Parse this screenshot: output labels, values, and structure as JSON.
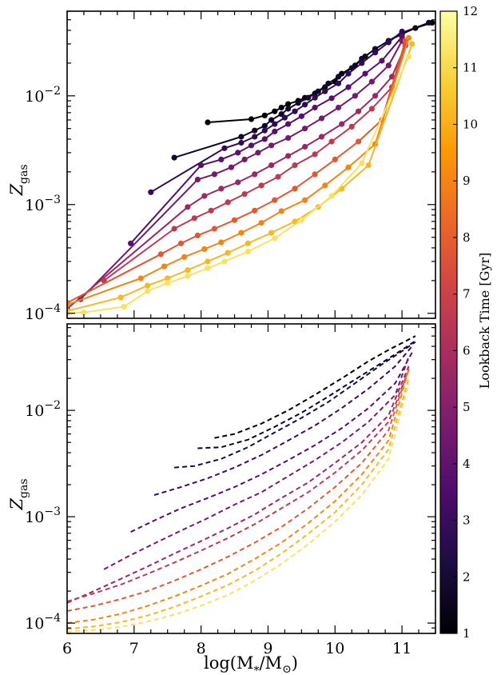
{
  "chart_data": [
    {
      "type": "line",
      "panel": "top",
      "style": "solid lines with circle markers",
      "ylabel_main": "Z",
      "ylabel_sub": "gas",
      "xlim": [
        6,
        11.5
      ],
      "ylim": [
        9e-05,
        0.06
      ],
      "yscale": "log",
      "xticks": [
        6,
        7,
        8,
        9,
        10,
        11
      ],
      "yticks": [
        {
          "value": 0.0001,
          "base": "10",
          "exp": "−4"
        },
        {
          "value": 0.001,
          "base": "10",
          "exp": "−3"
        },
        {
          "value": 0.01,
          "base": "10",
          "exp": "−2"
        }
      ],
      "series": [
        {
          "lookback_time": 1.0,
          "x": [
            8.1,
            8.75,
            8.95,
            9.1,
            9.2,
            9.3,
            9.45,
            9.55,
            9.7,
            9.85,
            10.0,
            10.1,
            10.3,
            10.45,
            10.6,
            10.8,
            11.0,
            11.2,
            11.45
          ],
          "y": [
            0.0057,
            0.0061,
            0.0066,
            0.0072,
            0.0078,
            0.0084,
            0.009,
            0.0096,
            0.0105,
            0.012,
            0.0135,
            0.016,
            0.019,
            0.023,
            0.027,
            0.032,
            0.037,
            0.042,
            0.047
          ]
        },
        {
          "lookback_time": 1.8,
          "x": [
            7.6,
            8.6,
            8.8,
            8.95,
            9.05,
            9.2,
            9.3,
            9.45,
            9.6,
            9.75,
            9.9,
            10.05,
            10.25,
            10.4,
            10.6,
            10.8,
            11.0,
            11.4
          ],
          "y": [
            0.0027,
            0.0042,
            0.0048,
            0.0053,
            0.006,
            0.0068,
            0.0076,
            0.0086,
            0.0096,
            0.011,
            0.013,
            0.015,
            0.018,
            0.022,
            0.027,
            0.032,
            0.038,
            0.047
          ]
        },
        {
          "lookback_time": 2.8,
          "x": [
            7.25,
            8.35,
            8.6,
            8.8,
            8.95,
            9.1,
            9.25,
            9.4,
            9.55,
            9.7,
            9.85,
            10.05,
            10.2,
            10.4,
            10.6,
            10.8,
            11.0
          ],
          "y": [
            0.0013,
            0.0033,
            0.0037,
            0.0042,
            0.0048,
            0.0055,
            0.0063,
            0.0072,
            0.0083,
            0.0096,
            0.011,
            0.013,
            0.016,
            0.02,
            0.025,
            0.031,
            0.039
          ]
        },
        {
          "lookback_time": 3.8,
          "x": [
            6.95,
            8.0,
            8.3,
            8.55,
            8.75,
            8.95,
            9.1,
            9.3,
            9.5,
            9.7,
            9.95,
            10.2,
            10.45,
            10.7,
            11.0
          ],
          "y": [
            0.00044,
            0.0023,
            0.0026,
            0.003,
            0.0035,
            0.004,
            0.0047,
            0.0055,
            0.0065,
            0.0078,
            0.0095,
            0.012,
            0.016,
            0.021,
            0.035
          ]
        },
        {
          "lookback_time": 4.6,
          "x": [
            6.2,
            7.95,
            8.2,
            8.45,
            8.65,
            8.85,
            9.05,
            9.3,
            9.55,
            9.8,
            10.05,
            10.3,
            10.55,
            10.8,
            11.0
          ],
          "y": [
            0.000135,
            0.0017,
            0.0019,
            0.0022,
            0.0026,
            0.003,
            0.0035,
            0.0041,
            0.005,
            0.0062,
            0.0078,
            0.01,
            0.0135,
            0.019,
            0.032
          ]
        },
        {
          "lookback_time": 5.6,
          "x": [
            6.0,
            7.8,
            8.05,
            8.3,
            8.55,
            8.8,
            9.05,
            9.3,
            9.55,
            9.8,
            10.1,
            10.35,
            10.6,
            10.85,
            11.05
          ],
          "y": [
            0.00011,
            0.00095,
            0.0012,
            0.0014,
            0.0016,
            0.0019,
            0.0023,
            0.0028,
            0.0034,
            0.0042,
            0.0055,
            0.0072,
            0.01,
            0.015,
            0.029
          ]
        },
        {
          "lookback_time": 6.6,
          "x": [
            6.55,
            7.6,
            7.9,
            8.15,
            8.4,
            8.65,
            8.9,
            9.15,
            9.4,
            9.7,
            9.95,
            10.25,
            10.55,
            10.85,
            11.05
          ],
          "y": [
            0.0002,
            0.0006,
            0.00075,
            0.00088,
            0.00105,
            0.00125,
            0.0015,
            0.0018,
            0.0023,
            0.0029,
            0.0038,
            0.0052,
            0.0076,
            0.012,
            0.03
          ]
        },
        {
          "lookback_time": 7.8,
          "x": [
            6.0,
            7.4,
            7.7,
            7.95,
            8.2,
            8.5,
            8.8,
            9.1,
            9.4,
            9.7,
            10.0,
            10.35,
            10.7,
            11.05
          ],
          "y": [
            0.000125,
            0.00035,
            0.00044,
            0.00052,
            0.0006,
            0.00072,
            0.00088,
            0.0011,
            0.0014,
            0.0019,
            0.0026,
            0.0038,
            0.006,
            0.032
          ]
        },
        {
          "lookback_time": 9.0,
          "x": [
            6.0,
            7.1,
            7.45,
            7.75,
            8.05,
            8.3,
            8.6,
            8.9,
            9.2,
            9.55,
            9.85,
            10.2,
            10.6,
            11.1
          ],
          "y": [
            0.00012,
            0.00021,
            0.00027,
            0.00033,
            0.00039,
            0.00045,
            0.00055,
            0.00068,
            0.00087,
            0.0011,
            0.0015,
            0.0022,
            0.0036,
            0.034
          ]
        },
        {
          "lookback_time": 10.2,
          "x": [
            6.0,
            6.8,
            7.2,
            7.5,
            7.8,
            8.1,
            8.4,
            8.7,
            9.05,
            9.4,
            9.75,
            10.1,
            10.5,
            11.15
          ],
          "y": [
            0.000105,
            0.00014,
            0.00018,
            0.00021,
            0.00025,
            0.0003,
            0.00036,
            0.00044,
            0.00055,
            0.0007,
            0.00095,
            0.0014,
            0.0023,
            0.03
          ]
        },
        {
          "lookback_time": 11.2,
          "x": [
            6.0,
            6.25,
            6.85,
            7.2,
            7.5,
            7.8,
            8.1,
            8.35,
            8.7,
            9.1,
            9.5,
            9.95,
            10.4,
            11.1
          ],
          "y": [
            0.0001,
            0.000102,
            0.000115,
            0.00016,
            0.00019,
            0.00022,
            0.00026,
            0.0003,
            0.00037,
            0.00049,
            0.00072,
            0.0012,
            0.0024,
            0.023
          ]
        }
      ]
    },
    {
      "type": "line",
      "panel": "bottom",
      "style": "dashed lines",
      "xlabel_main": "log(M",
      "xlabel_sub": "*",
      "xlabel_mid": "/M",
      "xlabel_sun": "⊙",
      "xlabel_end": ")",
      "ylabel_main": "Z",
      "ylabel_sub": "gas",
      "xlim": [
        6,
        11.5
      ],
      "ylim": [
        8e-05,
        0.065
      ],
      "yscale": "log",
      "xticks": [
        6,
        7,
        8,
        9,
        10,
        11
      ],
      "yticks": [
        {
          "value": 0.0001,
          "base": "10",
          "exp": "−4"
        },
        {
          "value": 0.001,
          "base": "10",
          "exp": "−3"
        },
        {
          "value": 0.01,
          "base": "10",
          "exp": "−2"
        }
      ],
      "series": [
        {
          "lookback_time": 1.0,
          "x": [
            8.2,
            8.5,
            8.9,
            9.3,
            9.7,
            10.1,
            10.5,
            10.8,
            11.0,
            11.2
          ],
          "y": [
            0.0055,
            0.006,
            0.0075,
            0.01,
            0.014,
            0.02,
            0.029,
            0.037,
            0.043,
            0.05
          ]
        },
        {
          "lookback_time": 1.6,
          "x": [
            7.95,
            8.3,
            8.7,
            9.1,
            9.5,
            9.9,
            10.3,
            10.7,
            11.0,
            11.2
          ],
          "y": [
            0.0044,
            0.0045,
            0.0053,
            0.007,
            0.0095,
            0.0135,
            0.0195,
            0.028,
            0.037,
            0.045
          ]
        },
        {
          "lookback_time": 2.2,
          "x": [
            7.6,
            7.9,
            8.3,
            8.7,
            9.1,
            9.5,
            9.9,
            10.3,
            10.7,
            11.0,
            11.2
          ],
          "y": [
            0.0029,
            0.003,
            0.0035,
            0.0045,
            0.0062,
            0.0085,
            0.012,
            0.018,
            0.027,
            0.036,
            0.044
          ]
        },
        {
          "lookback_time": 3.0,
          "x": [
            7.3,
            7.7,
            8.1,
            8.5,
            8.9,
            9.3,
            9.7,
            10.1,
            10.5,
            10.9,
            11.15
          ],
          "y": [
            0.0016,
            0.0019,
            0.0023,
            0.0029,
            0.0038,
            0.0052,
            0.0072,
            0.0105,
            0.016,
            0.026,
            0.04
          ]
        },
        {
          "lookback_time": 3.6,
          "x": [
            6.95,
            7.3,
            7.7,
            8.1,
            8.5,
            8.9,
            9.3,
            9.7,
            10.1,
            10.5,
            10.9,
            11.15
          ],
          "y": [
            0.00072,
            0.00092,
            0.0012,
            0.0015,
            0.0019,
            0.0025,
            0.0034,
            0.0047,
            0.0068,
            0.0105,
            0.018,
            0.035
          ]
        },
        {
          "lookback_time": 4.6,
          "x": [
            6.55,
            6.9,
            7.3,
            7.7,
            8.1,
            8.5,
            8.9,
            9.3,
            9.7,
            10.1,
            10.5,
            10.9,
            11.1
          ],
          "y": [
            0.00032,
            0.00042,
            0.00056,
            0.00074,
            0.00097,
            0.0013,
            0.0017,
            0.0024,
            0.0034,
            0.005,
            0.0078,
            0.014,
            0.032
          ]
        },
        {
          "lookback_time": 5.6,
          "x": [
            6.0,
            6.4,
            6.8,
            7.2,
            7.6,
            8.0,
            8.4,
            8.8,
            9.2,
            9.6,
            10.0,
            10.4,
            10.8,
            11.1
          ],
          "y": [
            0.000155,
            0.0002,
            0.00026,
            0.00034,
            0.00045,
            0.00059,
            0.00078,
            0.00105,
            0.0015,
            0.0021,
            0.0032,
            0.005,
            0.009,
            0.026
          ]
        },
        {
          "lookback_time": 6.6,
          "x": [
            6.0,
            6.4,
            6.8,
            7.2,
            7.6,
            8.0,
            8.4,
            8.8,
            9.2,
            9.6,
            10.0,
            10.4,
            10.8,
            11.1
          ],
          "y": [
            0.00016,
            0.00019,
            0.00023,
            0.00029,
            0.00037,
            0.00048,
            0.00063,
            0.00085,
            0.0012,
            0.0017,
            0.0026,
            0.0042,
            0.0078,
            0.024
          ]
        },
        {
          "lookback_time": 7.8,
          "x": [
            6.0,
            6.4,
            6.8,
            7.2,
            7.6,
            8.0,
            8.4,
            8.8,
            9.2,
            9.6,
            10.0,
            10.4,
            10.8,
            11.1
          ],
          "y": [
            0.00013,
            0.000145,
            0.000168,
            0.0002,
            0.00025,
            0.00032,
            0.00042,
            0.00057,
            0.0008,
            0.0012,
            0.0019,
            0.0032,
            0.0065,
            0.025
          ]
        },
        {
          "lookback_time": 9.0,
          "x": [
            6.0,
            6.4,
            6.8,
            7.2,
            7.6,
            8.0,
            8.4,
            8.8,
            9.2,
            9.6,
            10.0,
            10.4,
            10.8,
            11.1
          ],
          "y": [
            0.0001,
            0.000108,
            0.000122,
            0.000145,
            0.000178,
            0.000225,
            0.00029,
            0.0004,
            0.00057,
            0.00087,
            0.0014,
            0.0025,
            0.0052,
            0.024
          ]
        },
        {
          "lookback_time": 10.2,
          "x": [
            6.0,
            6.4,
            6.8,
            7.2,
            7.6,
            8.0,
            8.4,
            8.8,
            9.2,
            9.6,
            10.0,
            10.4,
            10.8,
            11.1
          ],
          "y": [
            8.8e-05,
            9.3e-05,
            0.000102,
            0.000118,
            0.000142,
            0.000178,
            0.000228,
            0.00031,
            0.00045,
            0.00069,
            0.0011,
            0.002,
            0.0043,
            0.02
          ]
        },
        {
          "lookback_time": 11.2,
          "x": [
            6.0,
            6.4,
            6.8,
            7.2,
            7.6,
            8.0,
            8.4,
            8.8,
            9.2,
            9.6,
            10.0,
            10.4,
            10.8,
            11.1
          ],
          "y": [
            8.3e-05,
            8.6e-05,
            9.2e-05,
            0.000103,
            0.00012,
            0.000146,
            0.000184,
            0.00025,
            0.00036,
            0.00055,
            0.0009,
            0.0016,
            0.0035,
            0.018
          ]
        }
      ]
    }
  ],
  "colorbar": {
    "label": "Lookback Time [Gyr]",
    "min": 1,
    "max": 12,
    "ticks": [
      "1",
      "2",
      "3",
      "4",
      "5",
      "6",
      "7",
      "8",
      "9",
      "10",
      "11",
      "12"
    ],
    "colormap": "inferno",
    "stops": [
      "#000004",
      "#1b0c41",
      "#4a0c6b",
      "#781c6d",
      "#a52c60",
      "#cf4446",
      "#ed6925",
      "#fb9b06",
      "#f7d13d",
      "#fcffa4"
    ]
  }
}
